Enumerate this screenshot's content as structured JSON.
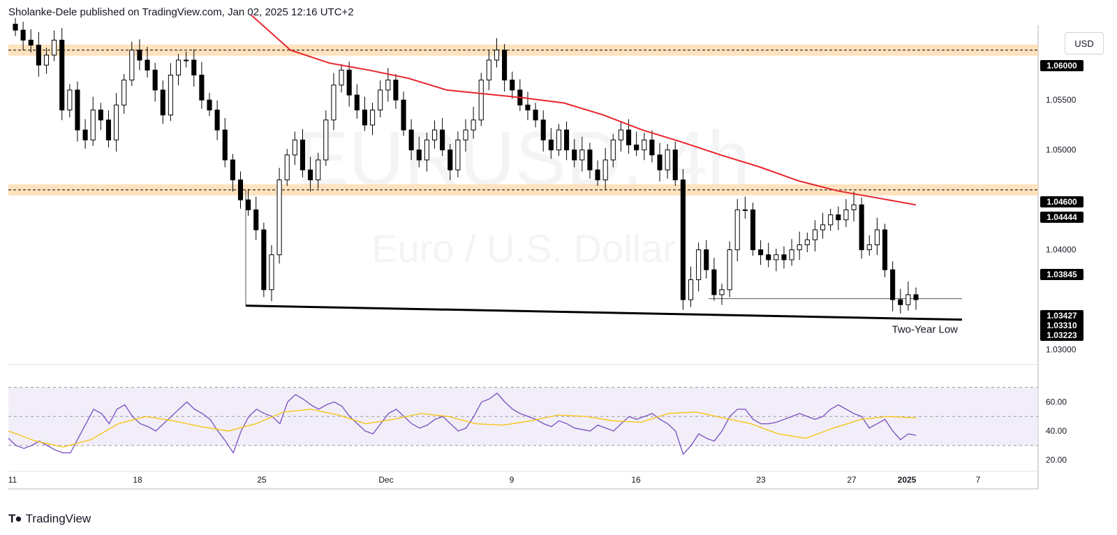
{
  "header": {
    "publisher_line": "Sholanke-Dele published on TradingView.com, Jan 02, 2025 12:16 UTC+2"
  },
  "currency_button": "USD",
  "watermark": {
    "symbol": "EURUSD, 4h",
    "name": "Euro / U.S. Dollar"
  },
  "footer": {
    "brand": "TradingView",
    "brand_icon": "tradingview-logo-icon"
  },
  "colors": {
    "up_candle": "#ffffff",
    "down_candle": "#000000",
    "ma_line": "#e8242d",
    "zone_fill": "#ffd9a8",
    "rsi_line": "#7e57c2",
    "rsi_ma": "#f5c518",
    "rsi_band": "#ede7f6"
  },
  "chart_data": {
    "type": "candlestick",
    "symbol": "EURUSD",
    "timeframe": "4h",
    "x_tick_labels": [
      "11",
      "18",
      "25",
      "Dec",
      "9",
      "16",
      "23",
      "27",
      "2025",
      "7"
    ],
    "y_ticks": [
      "1.05500",
      "1.05000",
      "1.04000",
      "1.03000"
    ],
    "ylim": [
      1.0285,
      1.0625
    ],
    "price_tags": [
      {
        "label": "1.06000",
        "value": 1.06
      },
      {
        "label": "1.04600",
        "value": 1.046
      },
      {
        "label": "1.04444",
        "value": 1.04444
      },
      {
        "label": "1.03845",
        "value": 1.03845
      },
      {
        "label": "1.03427",
        "value": 1.03427
      },
      {
        "label": "1.03310",
        "value": 1.0331
      },
      {
        "label": "1.03223",
        "value": 1.03223
      }
    ],
    "zones": [
      {
        "center": 1.06,
        "label": "1.06000"
      },
      {
        "center": 1.046,
        "label": "1.04600"
      }
    ],
    "trendline_annotation": "Two-Year Low",
    "series": [
      {
        "name": "Close",
        "values": [
          1.062,
          1.061,
          1.0605,
          1.0585,
          1.0595,
          1.061,
          1.054,
          1.056,
          1.052,
          1.051,
          1.054,
          1.053,
          1.051,
          1.0545,
          1.057,
          1.06,
          1.059,
          1.058,
          1.056,
          1.0535,
          1.0575,
          1.059,
          1.059,
          1.0575,
          1.055,
          1.054,
          1.052,
          1.049,
          1.047,
          1.045,
          1.044,
          1.042,
          1.036,
          1.0395,
          1.047,
          1.0495,
          1.051,
          1.048,
          1.047,
          1.049,
          1.053,
          1.0565,
          1.058,
          1.0555,
          1.054,
          1.0525,
          1.054,
          1.056,
          1.057,
          1.055,
          1.052,
          1.05,
          1.049,
          1.051,
          1.052,
          1.05,
          1.048,
          1.051,
          1.052,
          1.053,
          1.057,
          1.059,
          1.06,
          1.057,
          1.056,
          1.0545,
          1.054,
          1.053,
          1.051,
          1.05,
          1.052,
          1.05,
          1.049,
          1.05,
          1.048,
          1.047,
          1.049,
          1.051,
          1.052,
          1.0505,
          1.05,
          1.051,
          1.0495,
          1.048,
          1.05,
          1.047,
          1.035,
          1.037,
          1.04,
          1.038,
          1.0355,
          1.036,
          1.04,
          1.044,
          1.044,
          1.04,
          1.0395,
          1.039,
          1.0395,
          1.039,
          1.04,
          1.0405,
          1.041,
          1.042,
          1.0425,
          1.0435,
          1.043,
          1.044,
          1.0445,
          1.04,
          1.0405,
          1.042,
          1.038,
          1.035,
          1.0345,
          1.0355,
          1.035
        ]
      },
      {
        "name": "MA",
        "values": [
          1.0635,
          1.06,
          1.0587,
          1.058,
          1.0572,
          1.056,
          1.0556,
          1.0552,
          1.0547,
          1.0535,
          1.052,
          1.0508,
          1.0495,
          1.0483,
          1.0469,
          1.0459,
          1.0452,
          1.0445
        ]
      },
      {
        "name": "RSI",
        "values": [
          35,
          30,
          28,
          30,
          33,
          30,
          27,
          25,
          25,
          35,
          45,
          55,
          52,
          45,
          55,
          58,
          50,
          45,
          43,
          40,
          45,
          50,
          55,
          60,
          55,
          52,
          48,
          40,
          33,
          25,
          40,
          50,
          55,
          52,
          50,
          45,
          60,
          65,
          62,
          58,
          55,
          58,
          60,
          57,
          50,
          45,
          40,
          38,
          45,
          52,
          55,
          50,
          45,
          42,
          44,
          48,
          50,
          45,
          40,
          42,
          50,
          60,
          62,
          66,
          60,
          55,
          52,
          50,
          48,
          45,
          43,
          47,
          45,
          42,
          41,
          40,
          44,
          42,
          40,
          45,
          50,
          48,
          50,
          52,
          48,
          45,
          40,
          24,
          30,
          38,
          35,
          33,
          40,
          50,
          55,
          55,
          48,
          45,
          45,
          46,
          48,
          50,
          52,
          50,
          48,
          50,
          55,
          58,
          55,
          52,
          50,
          42,
          45,
          48,
          40,
          34,
          38,
          37
        ]
      },
      {
        "name": "RSI-MA",
        "values": [
          40,
          33,
          29,
          34,
          45,
          50,
          47,
          43,
          40,
          45,
          53,
          55,
          51,
          45,
          48,
          52,
          50,
          45,
          44,
          47,
          51,
          50,
          47,
          46,
          52,
          53,
          49,
          45,
          38,
          35,
          42,
          48,
          50,
          49
        ]
      }
    ],
    "rsi_axis": {
      "ticks": [
        "60.00",
        "40.00",
        "20.00"
      ],
      "ylim": [
        16,
        78
      ],
      "band": [
        30,
        70
      ],
      "mid": 50
    }
  }
}
